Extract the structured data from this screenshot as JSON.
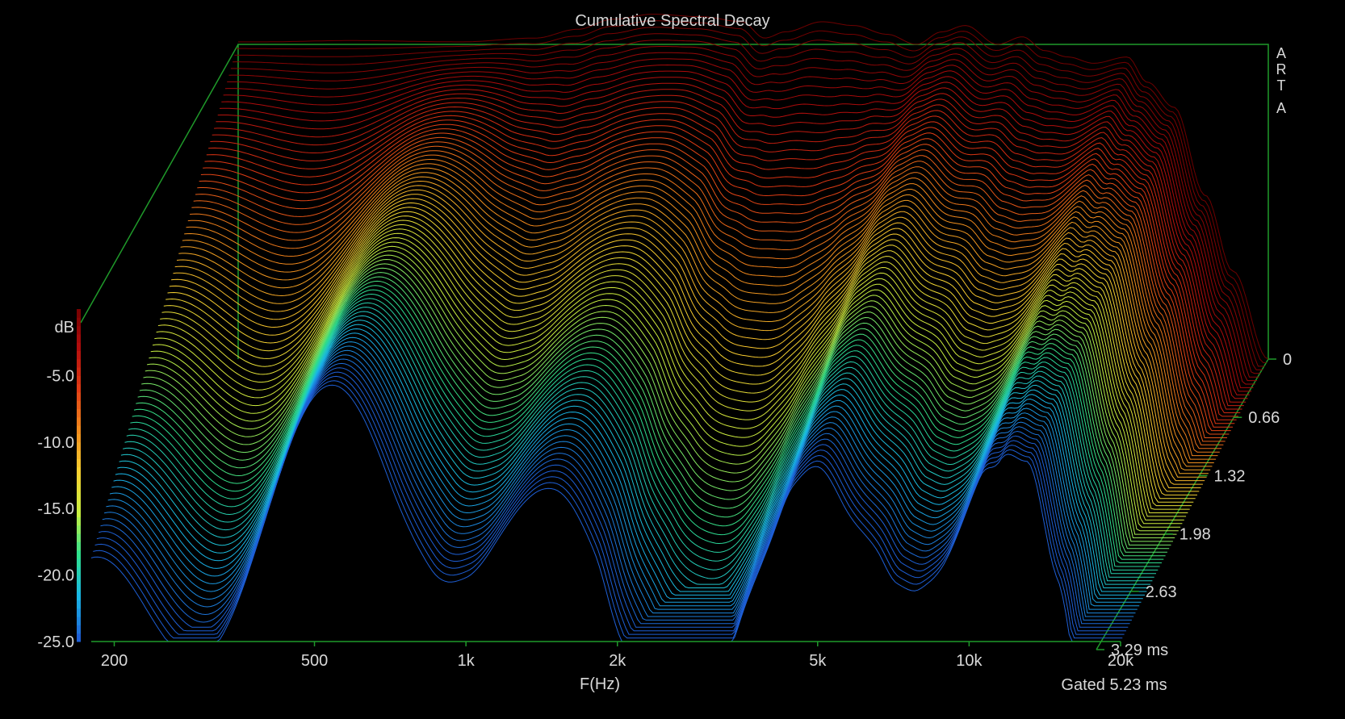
{
  "chart_data": {
    "type": "waterfall",
    "title": "Cumulative Spectral Decay",
    "brand_letters": [
      "A",
      "R",
      "T",
      "A"
    ],
    "xlabel": "F(Hz)",
    "xscale": "log",
    "xlim": [
      180,
      20000
    ],
    "x_ticks": [
      {
        "value": 200,
        "label": "200"
      },
      {
        "value": 500,
        "label": "500"
      },
      {
        "value": 1000,
        "label": "1k"
      },
      {
        "value": 2000,
        "label": "2k"
      },
      {
        "value": 5000,
        "label": "5k"
      },
      {
        "value": 10000,
        "label": "10k"
      },
      {
        "value": 20000,
        "label": "20k"
      }
    ],
    "ylabel": "dB",
    "ylim": [
      -25,
      0
    ],
    "y_ticks": [
      {
        "value": -5,
        "label": "-5.0"
      },
      {
        "value": -10,
        "label": "-10.0"
      },
      {
        "value": -15,
        "label": "-15.0"
      },
      {
        "value": -20,
        "label": "-20.0"
      },
      {
        "value": -25,
        "label": "-25.0"
      }
    ],
    "zlabel_unit": "ms",
    "zlim": [
      0,
      3.29
    ],
    "z_ticks": [
      {
        "value": 0,
        "label": "0"
      },
      {
        "value": 0.66,
        "label": "0.66"
      },
      {
        "value": 1.32,
        "label": "1.32"
      },
      {
        "value": 1.98,
        "label": "1.98"
      },
      {
        "value": 2.63,
        "label": "2.63"
      },
      {
        "value": 3.29,
        "label": "3.29 ms"
      }
    ],
    "footnote": "Gated 5.23 ms",
    "slice_count": 80,
    "colormap": [
      "#1e5fd6",
      "#19b8e6",
      "#2fe08c",
      "#c8f040",
      "#f7d030",
      "#f08a1c",
      "#e03a14",
      "#b00c0c",
      "#6e0000"
    ],
    "frame_color": "#1f9a2a",
    "initial_response_db": [
      {
        "f": 200,
        "db": 0.2
      },
      {
        "f": 300,
        "db": 0.3
      },
      {
        "f": 500,
        "db": 0.2
      },
      {
        "f": 700,
        "db": 0.5
      },
      {
        "f": 850,
        "db": 1.2
      },
      {
        "f": 1000,
        "db": 2.0
      },
      {
        "f": 1200,
        "db": 2.4
      },
      {
        "f": 1500,
        "db": 2.2
      },
      {
        "f": 1800,
        "db": 1.8
      },
      {
        "f": 2000,
        "db": 0.5
      },
      {
        "f": 2200,
        "db": 1.0
      },
      {
        "f": 2600,
        "db": 1.8
      },
      {
        "f": 3000,
        "db": 1.5
      },
      {
        "f": 3500,
        "db": 0.8
      },
      {
        "f": 4000,
        "db": 0.0
      },
      {
        "f": 4500,
        "db": 1.0
      },
      {
        "f": 5000,
        "db": 1.5
      },
      {
        "f": 5800,
        "db": 0.0
      },
      {
        "f": 6500,
        "db": 0.6
      },
      {
        "f": 7200,
        "db": -0.5
      },
      {
        "f": 8000,
        "db": -1.0
      },
      {
        "f": 9000,
        "db": -1.5
      },
      {
        "f": 10500,
        "db": -1.0
      },
      {
        "f": 11500,
        "db": -3.0
      },
      {
        "f": 13000,
        "db": -5.0
      },
      {
        "f": 15000,
        "db": -12.0
      },
      {
        "f": 17000,
        "db": -18.0
      },
      {
        "f": 20000,
        "db": -25.0
      }
    ]
  }
}
